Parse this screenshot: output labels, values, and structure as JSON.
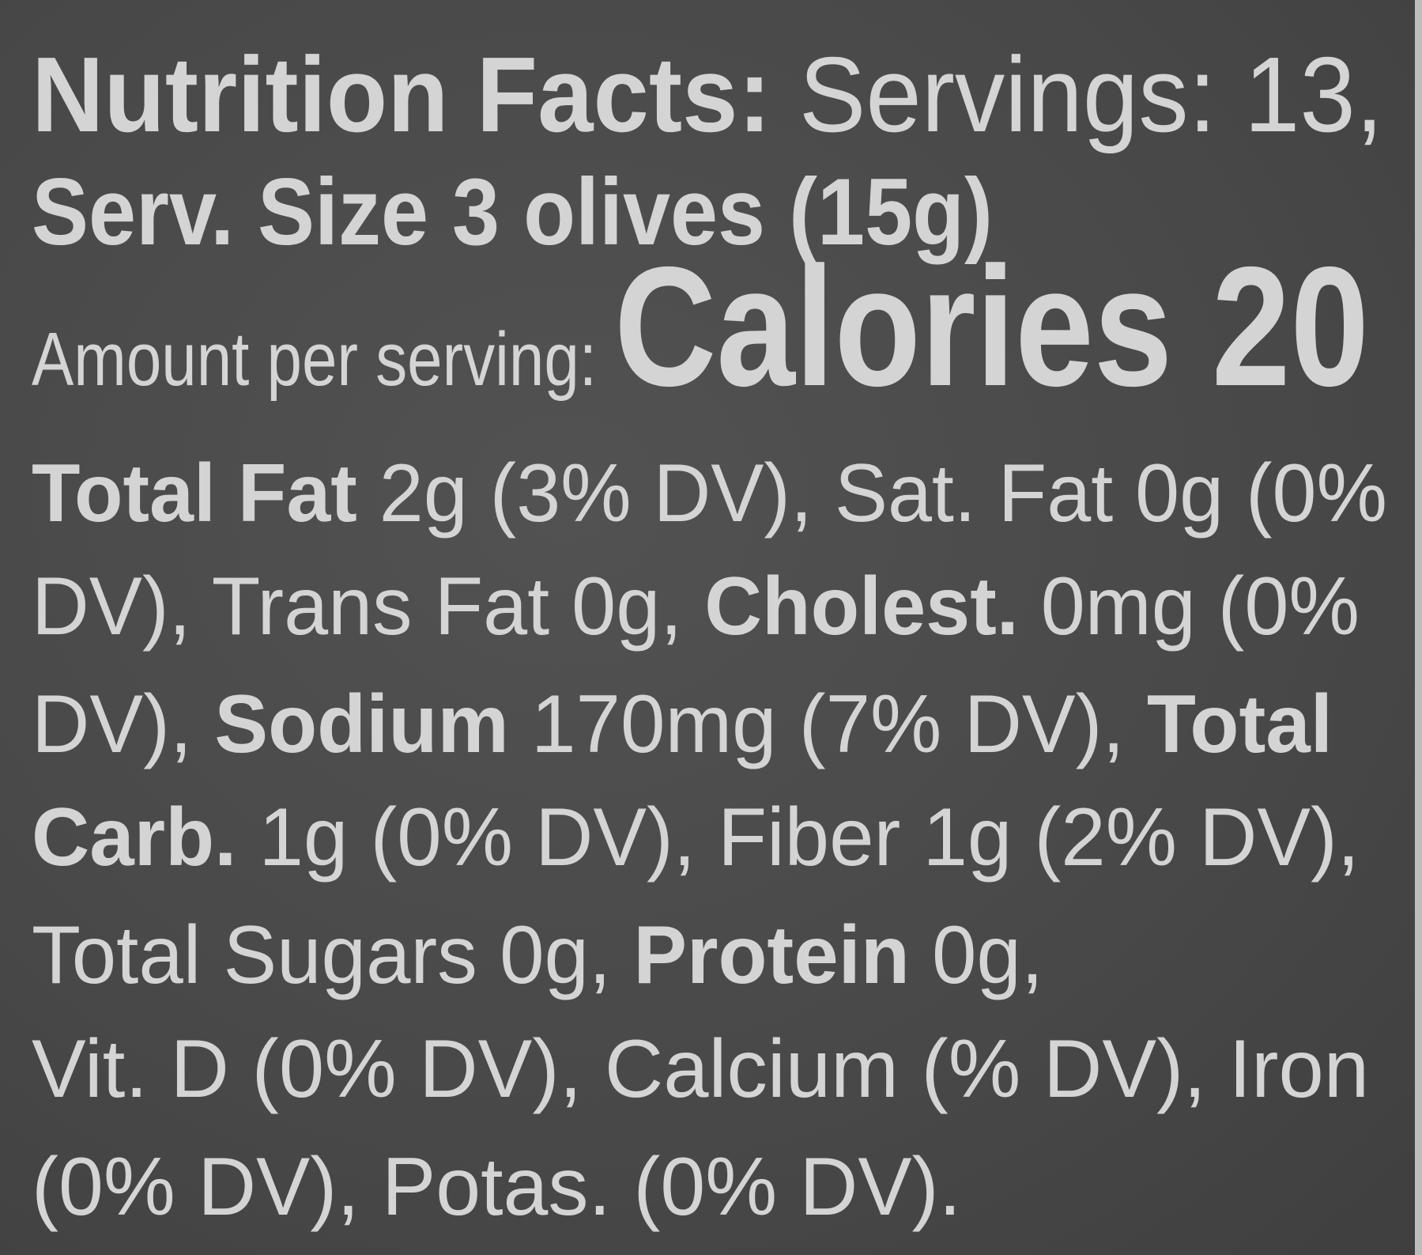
{
  "colors": {
    "background": "#4a4a4a",
    "text": "#d4d4d4"
  },
  "label": {
    "lines": [
      [
        {
          "text": "Nutrition Facts:",
          "bold": true
        },
        {
          "text": " Servings: 13,",
          "bold": false
        }
      ],
      [
        {
          "text": "Serv. Size 3 olives (15g)",
          "bold": true
        }
      ],
      [
        {
          "text": "Amount per serving: ",
          "bold": false
        },
        {
          "text": "Calories 20",
          "bold": true,
          "big": true
        }
      ],
      [
        {
          "text": "Total Fat",
          "bold": true
        },
        {
          "text": " 2g (3% DV), Sat. Fat 0g (0%",
          "bold": false
        }
      ],
      [
        {
          "text": "DV), Trans Fat 0g, ",
          "bold": false
        },
        {
          "text": "Cholest.",
          "bold": true
        },
        {
          "text": " 0mg (0%",
          "bold": false
        }
      ],
      [
        {
          "text": "DV), ",
          "bold": false
        },
        {
          "text": "Sodium",
          "bold": true
        },
        {
          "text": " 170mg (7% DV), ",
          "bold": false
        },
        {
          "text": "Total",
          "bold": true
        }
      ],
      [
        {
          "text": "Carb.",
          "bold": true
        },
        {
          "text": " 1g (0% DV), Fiber 1g (2% DV),",
          "bold": false
        }
      ],
      [
        {
          "text": "Total Sugars 0g, ",
          "bold": false
        },
        {
          "text": "Protein",
          "bold": true
        },
        {
          "text": " 0g,",
          "bold": false
        }
      ],
      [
        {
          "text": "Vit. D (0% DV), Calcium (% DV), Iron",
          "bold": false
        }
      ],
      [
        {
          "text": "(0% DV), Potas. (0% DV).",
          "bold": false
        }
      ]
    ]
  }
}
